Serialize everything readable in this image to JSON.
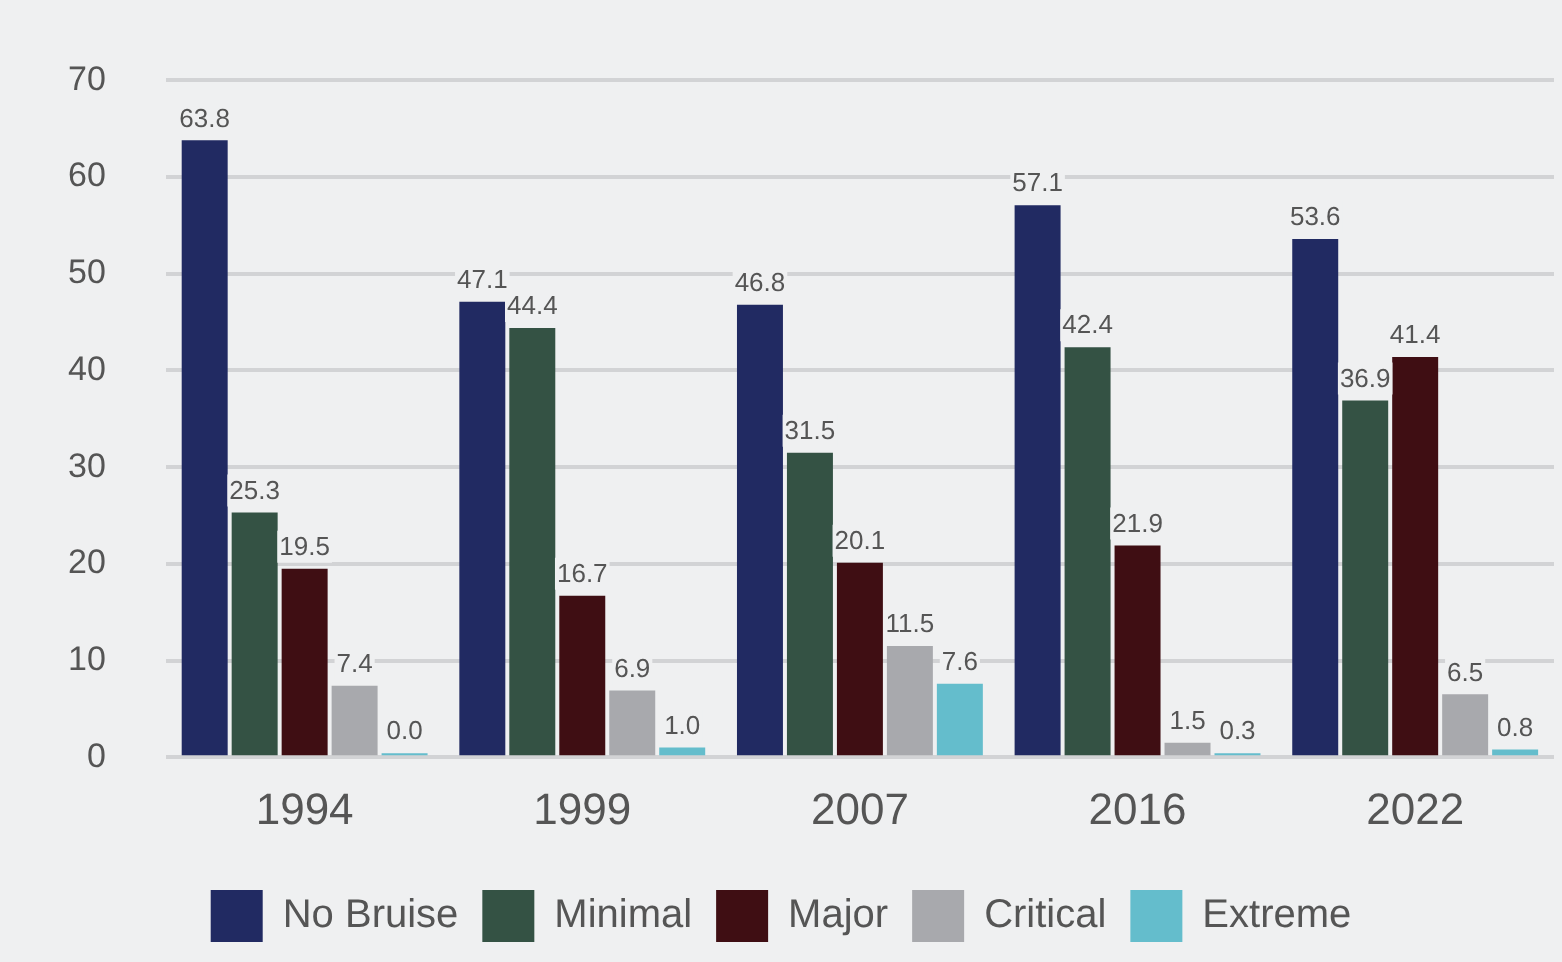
{
  "chart_data": {
    "type": "bar",
    "categories": [
      "1994",
      "1999",
      "2007",
      "2016",
      "2022"
    ],
    "series": [
      {
        "name": "No Bruise",
        "color": "#212a62",
        "values": [
          63.8,
          47.1,
          46.8,
          57.1,
          53.6
        ],
        "value_labels": [
          "63.8",
          "47.1",
          "46.8",
          "57.1",
          "53.6"
        ]
      },
      {
        "name": "Minimal",
        "color": "#345244",
        "values": [
          25.3,
          44.4,
          31.5,
          42.4,
          36.9
        ],
        "value_labels": [
          "25.3",
          "44.4",
          "31.5",
          "42.4",
          "36.9"
        ]
      },
      {
        "name": "Major",
        "color": "#3f0e13",
        "values": [
          19.5,
          16.7,
          20.1,
          21.9,
          41.4
        ],
        "value_labels": [
          "19.5",
          "16.7",
          "20.1",
          "21.9",
          "41.4"
        ]
      },
      {
        "name": "Critical",
        "color": "#a8a9ad",
        "values": [
          7.4,
          6.9,
          11.5,
          1.5,
          6.5
        ],
        "value_labels": [
          "7.4",
          "6.9",
          "11.5",
          "1.5",
          "6.5"
        ]
      },
      {
        "name": "Extreme",
        "color": "#64bdcc",
        "values": [
          0.0,
          1.0,
          7.6,
          0.3,
          0.8
        ],
        "value_labels": [
          "0.0",
          "1.0",
          "7.6",
          "0.3",
          "0.8"
        ]
      }
    ],
    "ylim": [
      0,
      70
    ],
    "yticks": [
      0,
      10,
      20,
      30,
      40,
      50,
      60,
      70
    ],
    "grid": "y",
    "legend": "bottom"
  }
}
